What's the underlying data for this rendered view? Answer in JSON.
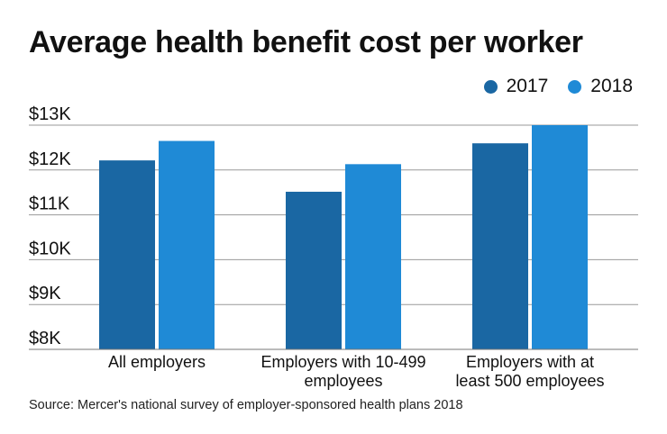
{
  "chart_data": {
    "type": "bar",
    "title": "Average health benefit cost per worker",
    "categories": [
      [
        "All employers"
      ],
      [
        "Employers with 10-499",
        "employees"
      ],
      [
        "Employers with at",
        "least 500 employees"
      ]
    ],
    "series": [
      {
        "name": "2017",
        "values": [
          12214,
          11515,
          12595
        ],
        "color": "#1a67a3"
      },
      {
        "name": "2018",
        "values": [
          12648,
          12130,
          13000
        ],
        "color": "#1f8ad6"
      }
    ],
    "yticks": [
      8000,
      9000,
      10000,
      11000,
      12000,
      13000
    ],
    "ytick_labels": [
      "$8K",
      "$9K",
      "$10K",
      "$11K",
      "$12K",
      "$13K"
    ],
    "ylim": [
      8000,
      13000
    ],
    "xlabel": "",
    "ylabel": "",
    "grid": true,
    "legend_position": "top-right"
  },
  "source": "Source: Mercer's national survey of employer-sponsored health plans 2018"
}
